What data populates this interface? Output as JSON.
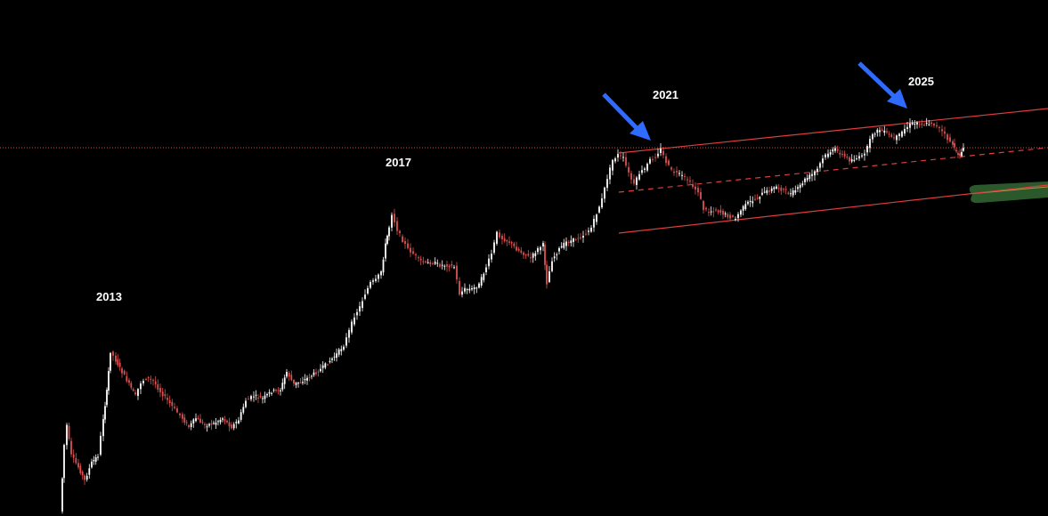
{
  "chart_data": {
    "type": "candlestick",
    "title": "",
    "xlabel": "",
    "ylabel": "",
    "scale": "log",
    "grid": false,
    "colors": {
      "background": "#000000",
      "candle_up": "#ffffff",
      "candle_down": "#e05050",
      "channel": "#e03c3c",
      "reference_line": "#e04a3a",
      "arrow": "#2f6bff",
      "highlight": "#2e5e2e",
      "label": "#ffffff"
    },
    "cycle_labels": [
      {
        "text": "2013"
      },
      {
        "text": "2017"
      },
      {
        "text": "2021"
      },
      {
        "text": "2025"
      }
    ],
    "annotations": [
      {
        "type": "arrow",
        "points_to": "2021 cycle top",
        "icon": "blue-arrow"
      },
      {
        "type": "arrow",
        "points_to": "2025 cycle top",
        "icon": "blue-arrow"
      },
      {
        "type": "channel",
        "description": "ascending channel from 2021 top",
        "lines": [
          "upper",
          "middle-dashed",
          "lower"
        ]
      },
      {
        "type": "horizontal-line",
        "style": "dotted",
        "description": "2021 top level"
      },
      {
        "type": "highlight",
        "description": "green marker zone on lower channel line"
      }
    ]
  }
}
